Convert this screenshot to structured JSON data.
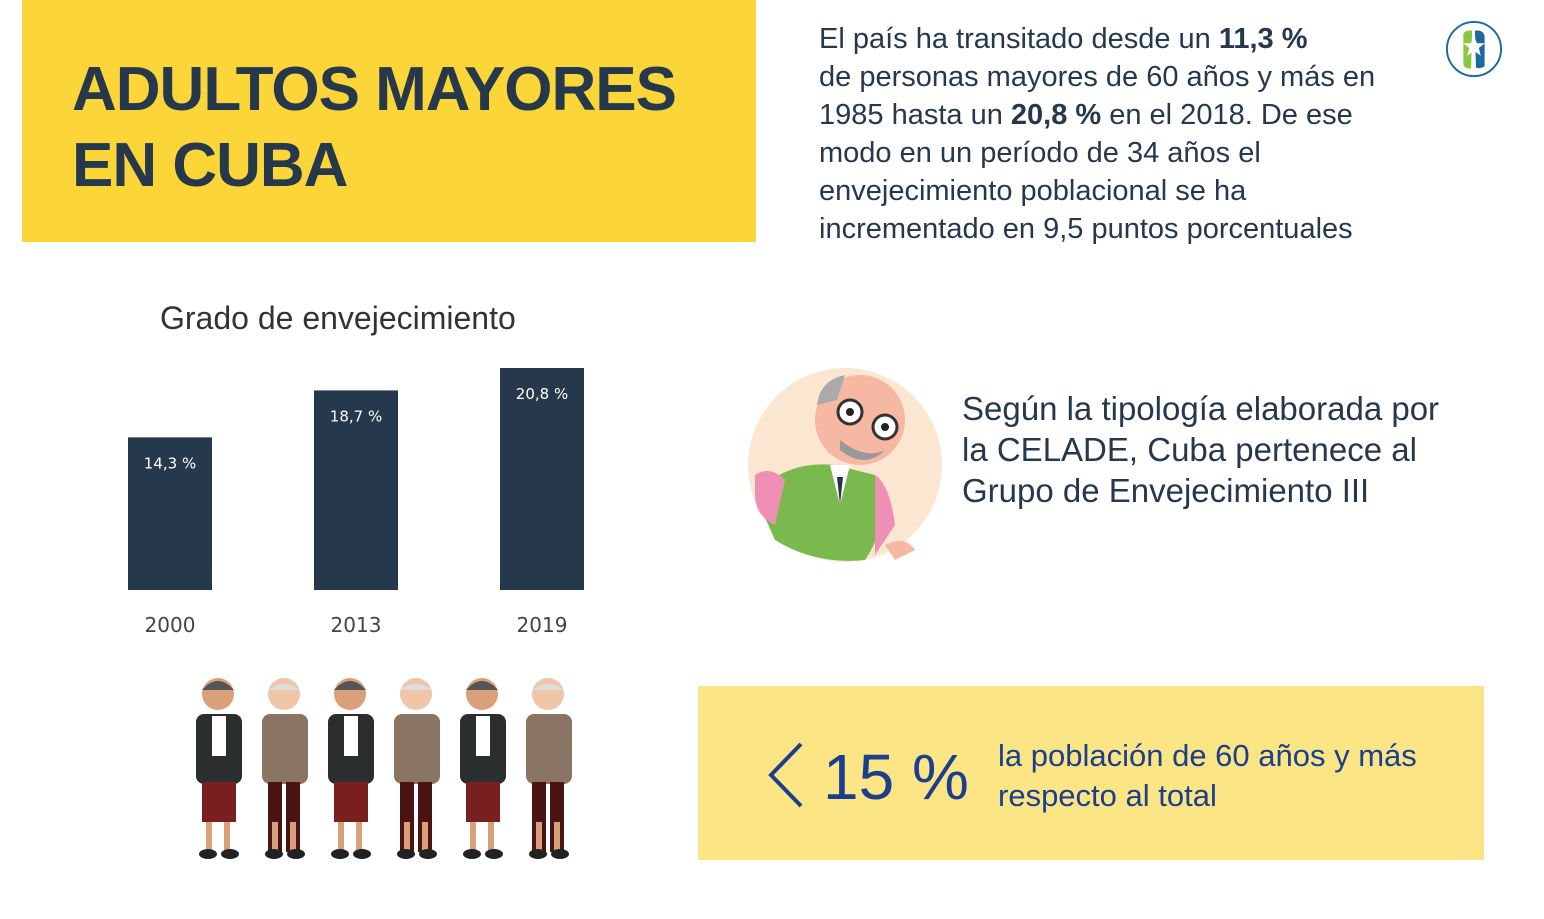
{
  "header": {
    "title_line1": "ADULTOS MAYORES",
    "title_line2": "EN CUBA"
  },
  "intro": {
    "p1": "El país ha transitado desde un ",
    "v1": "11,3 %",
    "p2": " de personas mayores de 60 años y más en 1985 hasta un ",
    "v2": "20,8 %",
    "p3": " en el 2018. De ese modo en un período de 34 años el envejecimiento poblacional se ha incrementado en 9,5 puntos porcentuales"
  },
  "logo": {
    "icon": "star-logo-icon",
    "colors": [
      "#8cc63f",
      "#1a6aa0"
    ]
  },
  "chart_data": {
    "type": "bar",
    "title": "Grado de envejecimiento",
    "categories": [
      "2000",
      "2013",
      "2019"
    ],
    "values": [
      14.3,
      18.7,
      20.8
    ],
    "data_labels": [
      "14,3 %",
      "18,7 %",
      "20,8 %"
    ],
    "ylim": [
      0,
      21
    ],
    "grid": false,
    "bar_color": "#25384c"
  },
  "celade": {
    "text": "Según la tipología elaborada por la CELADE,  Cuba pertenece al Grupo de Envejecimiento III"
  },
  "stat": {
    "symbol": "<",
    "value": "15 %",
    "description": "la población de 60 años y más respecto al total"
  },
  "colors": {
    "yellow": "#fcd538",
    "light_yellow": "#fbe584",
    "navy": "#25384c",
    "blue": "#1b3e8f"
  }
}
